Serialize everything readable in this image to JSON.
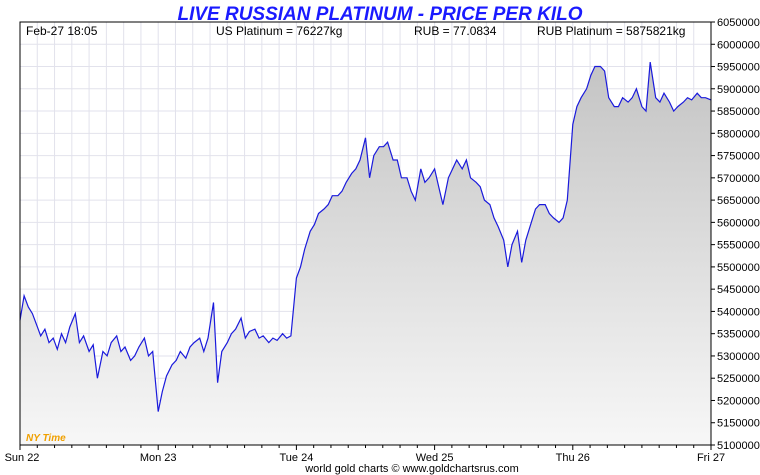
{
  "header": {
    "title": "LIVE RUSSIAN PLATINUM - PRICE PER KILO",
    "timestamp": "Feb-27  18:05",
    "us_platinum": "US Platinum = 76227kg",
    "rub_rate": "RUB = 77.0834",
    "rub_platinum": "RUB Platinum = 5875821kg"
  },
  "footer": {
    "credit": "world gold charts © www.goldchartsrus.com",
    "timezone": "NY Time"
  },
  "colors": {
    "line": "#1a1adc",
    "title": "#1a1aff",
    "grid": "#e2e2ec",
    "fill_top": "#c4c4c4",
    "fill_bottom": "#f7f7f7",
    "timezone": "#f0a000"
  },
  "chart_data": {
    "type": "area",
    "title": "LIVE RUSSIAN PLATINUM - PRICE PER KILO",
    "xlabel": "",
    "ylabel": "",
    "ylim": [
      5100000,
      6050000
    ],
    "xlim": [
      0,
      5
    ],
    "y_ticks": [
      5100000,
      5150000,
      5200000,
      5250000,
      5300000,
      5350000,
      5400000,
      5450000,
      5500000,
      5550000,
      5600000,
      5650000,
      5700000,
      5750000,
      5800000,
      5850000,
      5900000,
      5950000,
      6000000,
      6050000
    ],
    "y_tick_labels": [
      "5100000",
      "5150000",
      "5200000",
      "5250000",
      "5300000",
      "5350000",
      "5400000",
      "5450000",
      "5500000",
      "5550000",
      "5600000",
      "5650000",
      "5700000",
      "5750000",
      "5800000",
      "5850000",
      "5900000",
      "5950000",
      "6000000",
      "6050000"
    ],
    "x_tick_values": [
      0,
      1,
      2,
      3,
      4,
      5
    ],
    "x_tick_labels": [
      "Sun 22",
      "Mon 23",
      "Tue 24",
      "Wed 25",
      "Thu 26",
      "Fri 27"
    ],
    "grid": true,
    "legend": "none",
    "series": [
      {
        "x": [
          0.0,
          0.03,
          0.06,
          0.09,
          0.12,
          0.15,
          0.18,
          0.21,
          0.24,
          0.27,
          0.3,
          0.33,
          0.36,
          0.4,
          0.43,
          0.46,
          0.5,
          0.53,
          0.56,
          0.6,
          0.63,
          0.66,
          0.7,
          0.73,
          0.76,
          0.8,
          0.83,
          0.86,
          0.9,
          0.93,
          0.96,
          1.0,
          1.03,
          1.06,
          1.1,
          1.13,
          1.16,
          1.2,
          1.23,
          1.26,
          1.3,
          1.33,
          1.36,
          1.4,
          1.43,
          1.46,
          1.5,
          1.53,
          1.56,
          1.6,
          1.63,
          1.66,
          1.7,
          1.73,
          1.76,
          1.8,
          1.83,
          1.86,
          1.9,
          1.93,
          1.96,
          2.0,
          2.03,
          2.06,
          2.1,
          2.13,
          2.16,
          2.2,
          2.23,
          2.26,
          2.3,
          2.33,
          2.36,
          2.4,
          2.43,
          2.46,
          2.5,
          2.53,
          2.56,
          2.6,
          2.63,
          2.66,
          2.7,
          2.73,
          2.76,
          2.8,
          2.83,
          2.86,
          2.9,
          2.93,
          2.96,
          3.0,
          3.03,
          3.06,
          3.1,
          3.13,
          3.16,
          3.2,
          3.23,
          3.26,
          3.3,
          3.33,
          3.36,
          3.4,
          3.43,
          3.46,
          3.5,
          3.53,
          3.56,
          3.6,
          3.63,
          3.66,
          3.7,
          3.73,
          3.76,
          3.8,
          3.83,
          3.86,
          3.9,
          3.93,
          3.96,
          4.0,
          4.03,
          4.06,
          4.1,
          4.13,
          4.16,
          4.2,
          4.23,
          4.26,
          4.3,
          4.33,
          4.36,
          4.4,
          4.43,
          4.46,
          4.5,
          4.53,
          4.56,
          4.6,
          4.63,
          4.66,
          4.7,
          4.73,
          4.76,
          4.8,
          4.83,
          4.86,
          4.9,
          4.93,
          4.96,
          5.0
        ],
        "values": [
          5380000,
          5435000,
          5410000,
          5395000,
          5370000,
          5345000,
          5360000,
          5330000,
          5340000,
          5315000,
          5350000,
          5330000,
          5365000,
          5395000,
          5330000,
          5345000,
          5310000,
          5325000,
          5250000,
          5310000,
          5300000,
          5330000,
          5345000,
          5310000,
          5320000,
          5290000,
          5300000,
          5320000,
          5340000,
          5300000,
          5310000,
          5175000,
          5220000,
          5255000,
          5280000,
          5290000,
          5310000,
          5295000,
          5320000,
          5330000,
          5340000,
          5310000,
          5340000,
          5420000,
          5240000,
          5310000,
          5330000,
          5350000,
          5360000,
          5385000,
          5340000,
          5355000,
          5360000,
          5340000,
          5345000,
          5330000,
          5340000,
          5335000,
          5350000,
          5340000,
          5345000,
          5475000,
          5500000,
          5540000,
          5580000,
          5595000,
          5620000,
          5630000,
          5640000,
          5660000,
          5660000,
          5670000,
          5690000,
          5710000,
          5720000,
          5740000,
          5790000,
          5700000,
          5750000,
          5770000,
          5770000,
          5780000,
          5740000,
          5740000,
          5700000,
          5700000,
          5670000,
          5650000,
          5720000,
          5690000,
          5700000,
          5720000,
          5680000,
          5640000,
          5700000,
          5720000,
          5740000,
          5720000,
          5740000,
          5700000,
          5690000,
          5680000,
          5650000,
          5640000,
          5610000,
          5590000,
          5560000,
          5500000,
          5550000,
          5580000,
          5510000,
          5560000,
          5600000,
          5630000,
          5640000,
          5640000,
          5620000,
          5610000,
          5600000,
          5610000,
          5650000,
          5820000,
          5860000,
          5880000,
          5900000,
          5930000,
          5950000,
          5950000,
          5940000,
          5880000,
          5860000,
          5860000,
          5880000,
          5870000,
          5880000,
          5900000,
          5860000,
          5850000,
          5960000,
          5880000,
          5870000,
          5890000,
          5870000,
          5850000,
          5860000,
          5870000,
          5880000,
          5875000,
          5890000,
          5880000,
          5880000,
          5875000
        ]
      }
    ]
  }
}
